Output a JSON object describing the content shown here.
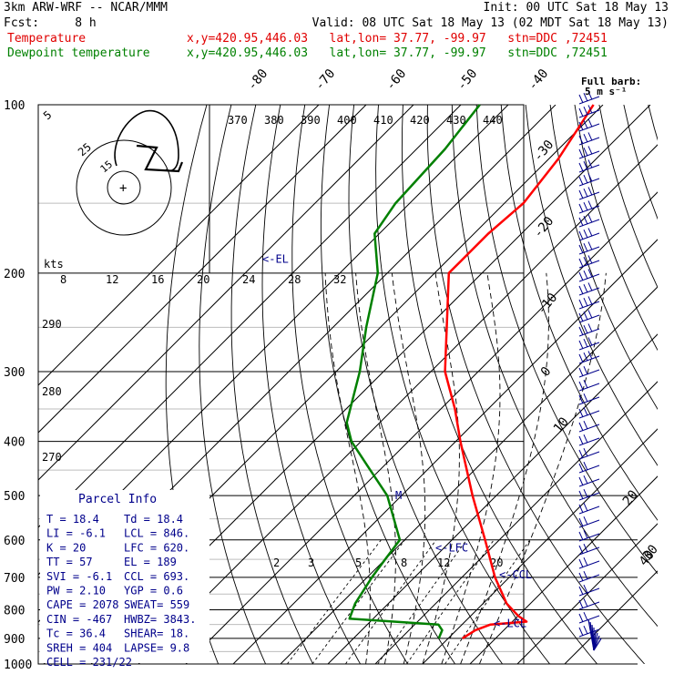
{
  "header": {
    "model": "3km ARW-WRF -- NCAR/MMM",
    "init": "Init: 00 UTC Sat 18 May 13",
    "fcst": "Fcst:     8 h",
    "valid": "Valid: 08 UTC Sat 18 May 13 (02 MDT Sat 18 May 13)",
    "legend": [
      {
        "name": "Temperature",
        "color": "#ff0000",
        "info": "x,y=420.95,446.03   lat,lon= 37.77, -99.97   stn=DDC ,72451"
      },
      {
        "name": "Dewpoint temperature",
        "color": "#008000",
        "info": "x,y=420.95,446.03   lat,lon= 37.77, -99.97   stn=DDC ,72451"
      }
    ]
  },
  "wind_note": {
    "line1": "Full barb:",
    "line2": "5 m s⁻¹"
  },
  "hodograph": {
    "kts_label": "kts",
    "ring_labels": [
      "5",
      "25",
      "15"
    ],
    "center_mark": "+"
  },
  "parcel_info": {
    "title": "Parcel Info",
    "rows": [
      [
        "T   =   18.4",
        "Td  =  18.4"
      ],
      [
        "LI  =   -6.1",
        "LCL =  846."
      ],
      [
        "K   =     20",
        "LFC =  620."
      ],
      [
        "TT  =     57",
        "EL  =   189"
      ],
      [
        "SVI =   -6.1",
        "CCL =  693."
      ],
      [
        "PW  =   2.10",
        "YGP =   0.6"
      ],
      [
        "CAPE =  2078",
        "SWEAT=  559"
      ],
      [
        "CIN  =  -467",
        "HWBZ= 3843."
      ],
      [
        "Tc   =  36.4",
        "SHEAR=   18."
      ],
      [
        "SREH =   404",
        "LAPSE=   9.8"
      ],
      [
        "CELL = 231/22",
        ""
      ]
    ]
  },
  "level_markers": [
    {
      "label": "<-EL",
      "p": 189
    },
    {
      "label": "<-LFC",
      "p": 620
    },
    {
      "label": "<-CCL",
      "p": 693
    },
    {
      "label": "<-LCL",
      "p": 846
    },
    {
      "label": "M",
      "p": 500
    }
  ],
  "chart_data": {
    "type": "line",
    "subtype": "skew-T log-p thermodynamic diagram",
    "y_axis": {
      "label": "",
      "ticks": [
        100,
        200,
        300,
        400,
        500,
        600,
        700,
        800,
        900,
        1000
      ],
      "scale": "log",
      "reversed": true
    },
    "isotherm_labels": [
      "-80",
      "-70",
      "-60",
      "-50",
      "-40",
      "-30",
      "-20",
      "-10",
      "0",
      "10",
      "20",
      "30",
      "40"
    ],
    "theta_e_labels": [
      "370",
      "380",
      "390",
      "400",
      "410",
      "420",
      "430",
      "440"
    ],
    "mixing_ratio_labels": [
      "2",
      "3",
      "5",
      "8",
      "12",
      "20"
    ],
    "adiabat_labels": [
      "290",
      "280",
      "270"
    ],
    "hodo_speed_labels": [
      "8",
      "12",
      "16",
      "20",
      "24",
      "28",
      "32"
    ],
    "series": [
      {
        "name": "Temperature",
        "color": "#ff0000",
        "points": [
          [
            900,
            23
          ],
          [
            870,
            24
          ],
          [
            850,
            26
          ],
          [
            840,
            33
          ],
          [
            820,
            30
          ],
          [
            780,
            25
          ],
          [
            700,
            17
          ],
          [
            600,
            7
          ],
          [
            500,
            -5
          ],
          [
            400,
            -19
          ],
          [
            350,
            -27
          ],
          [
            300,
            -37
          ],
          [
            250,
            -46
          ],
          [
            200,
            -57
          ],
          [
            190,
            -57
          ],
          [
            170,
            -57
          ],
          [
            150,
            -56
          ],
          [
            125,
            -58
          ],
          [
            100,
            -62
          ]
        ]
      },
      {
        "name": "Dewpoint temperature",
        "color": "#008000",
        "points": [
          [
            900,
            18
          ],
          [
            870,
            17
          ],
          [
            850,
            15
          ],
          [
            830,
            -5
          ],
          [
            780,
            -7
          ],
          [
            700,
            -9
          ],
          [
            650,
            -10
          ],
          [
            600,
            -11
          ],
          [
            500,
            -23
          ],
          [
            450,
            -32
          ],
          [
            400,
            -42
          ],
          [
            370,
            -47
          ],
          [
            300,
            -55
          ],
          [
            250,
            -63
          ],
          [
            200,
            -72
          ],
          [
            170,
            -81
          ],
          [
            150,
            -83
          ],
          [
            120,
            -84
          ],
          [
            100,
            -86
          ]
        ]
      }
    ],
    "grid": true,
    "legend_position": "top-left"
  }
}
